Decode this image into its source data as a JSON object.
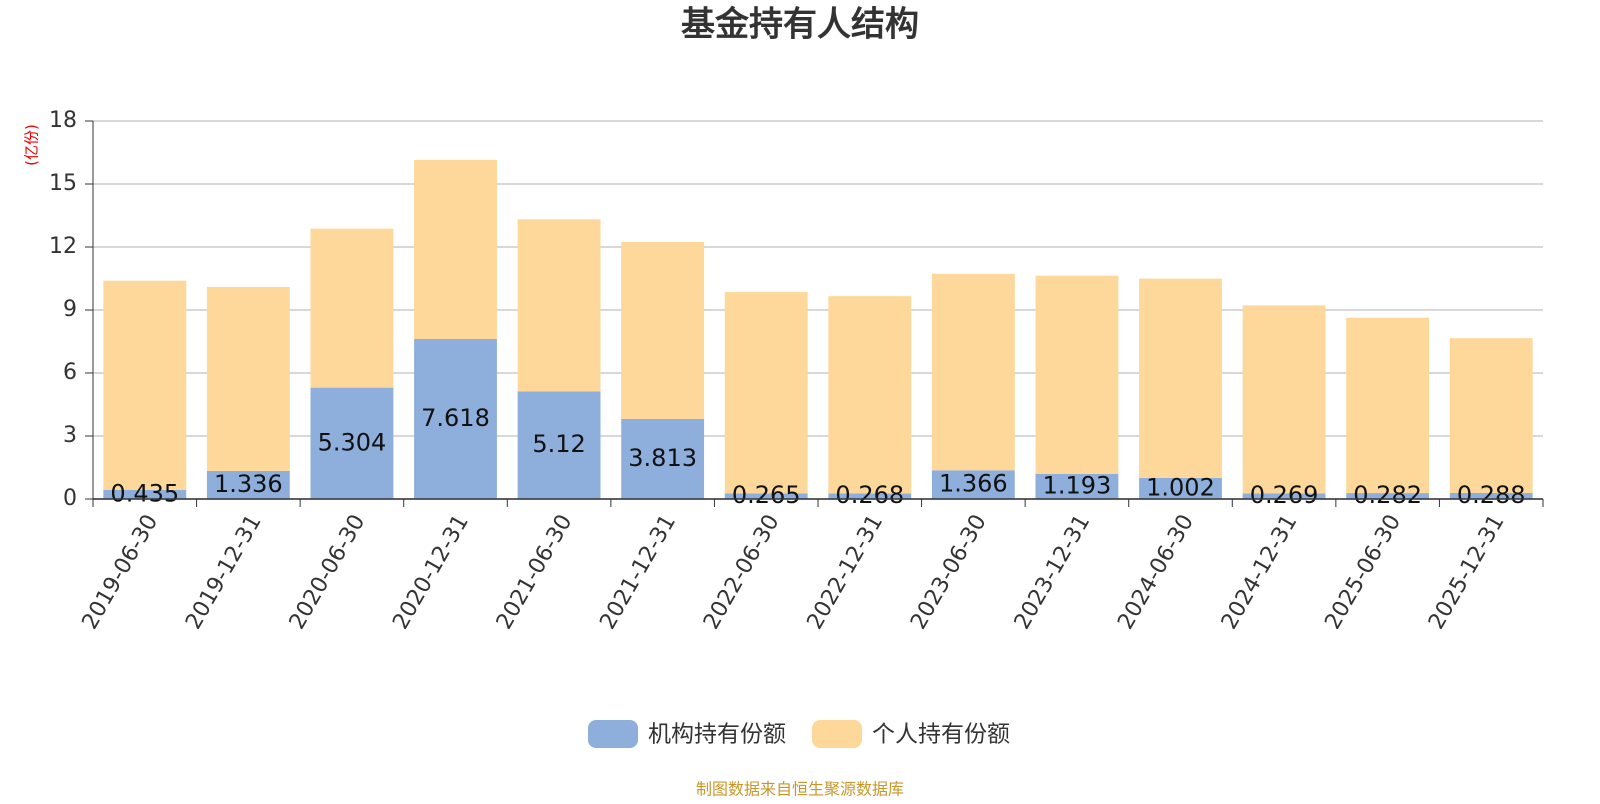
{
  "chart_data": {
    "type": "stacked-bar",
    "title": "基金持有人结构",
    "y_label": "(亿份)",
    "source": "制图数据来自恒生聚源数据库",
    "categories": [
      "2019-06-30",
      "2019-12-31",
      "2020-06-30",
      "2020-12-31",
      "2021-06-30",
      "2021-12-31",
      "2022-06-30",
      "2022-12-31",
      "2023-06-30",
      "2023-12-31",
      "2024-06-30",
      "2024-12-31",
      "2025-06-30",
      "2025-12-31"
    ],
    "series": [
      {
        "name": "机构持有份额",
        "color": "#8eaedb",
        "values": [
          0.435,
          1.336,
          5.304,
          7.618,
          5.12,
          3.813,
          0.265,
          0.268,
          1.366,
          1.193,
          1.002,
          0.269,
          0.282,
          0.288
        ]
      },
      {
        "name": "个人持有份额",
        "color": "#fdd89a",
        "values": [
          9.96,
          8.76,
          7.57,
          8.53,
          8.2,
          8.43,
          9.59,
          9.39,
          9.36,
          9.44,
          9.49,
          8.95,
          8.35,
          7.37
        ]
      }
    ],
    "ylim": [
      0,
      18
    ],
    "yticks": [
      0,
      3,
      6,
      9,
      12,
      15,
      18
    ],
    "grid": true
  }
}
